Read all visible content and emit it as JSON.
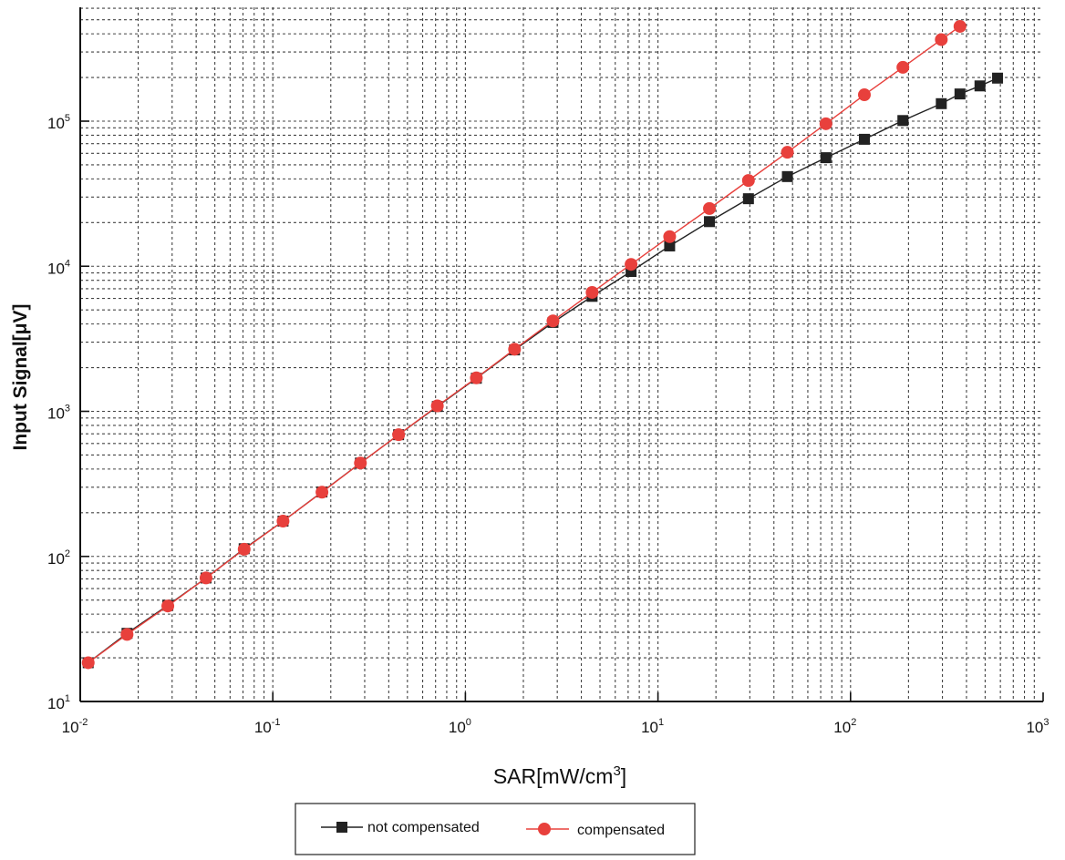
{
  "chart_data": {
    "type": "line",
    "title": "",
    "xlabel": {
      "base": "SAR[mW/cm",
      "sup": "3",
      "tail": "]"
    },
    "ylabel": "Input Signal[μV]",
    "x_scale": "log",
    "y_scale": "log",
    "xlim": [
      0.01,
      1000
    ],
    "ylim": [
      10,
      600000
    ],
    "x_ticks": [
      {
        "base": "10",
        "exp": "-2"
      },
      {
        "base": "10",
        "exp": "-1"
      },
      {
        "base": "10",
        "exp": "0"
      },
      {
        "base": "10",
        "exp": "1"
      },
      {
        "base": "10",
        "exp": "2"
      },
      {
        "base": "10",
        "exp": "3"
      }
    ],
    "y_ticks": [
      {
        "base": "10",
        "exp": "1"
      },
      {
        "base": "10",
        "exp": "2"
      },
      {
        "base": "10",
        "exp": "3"
      },
      {
        "base": "10",
        "exp": "4"
      },
      {
        "base": "10",
        "exp": "5"
      }
    ],
    "grid": true,
    "legend_position": "bottom-center",
    "series": [
      {
        "name": "not compensated",
        "marker": "square",
        "color": "#222222",
        "x": [
          0.011,
          0.0175,
          0.0285,
          0.045,
          0.071,
          0.113,
          0.18,
          0.285,
          0.45,
          0.715,
          1.14,
          1.8,
          2.85,
          4.55,
          7.25,
          11.5,
          18.5,
          29.5,
          47,
          74.5,
          118,
          187,
          296,
          370,
          470,
          580
        ],
        "y": [
          18.5,
          29.5,
          46,
          71,
          113,
          175,
          278,
          440,
          690,
          1080,
          1690,
          2650,
          4100,
          6200,
          9200,
          13800,
          20300,
          29200,
          41500,
          56000,
          75000,
          101000,
          132000,
          154000,
          175000,
          198000
        ]
      },
      {
        "name": "compensated",
        "marker": "circle",
        "color": "#e8403c",
        "x": [
          0.011,
          0.0175,
          0.0285,
          0.045,
          0.071,
          0.113,
          0.18,
          0.285,
          0.45,
          0.715,
          1.14,
          1.8,
          2.85,
          4.55,
          7.25,
          11.5,
          18.5,
          29.5,
          47,
          74.5,
          118,
          187,
          296,
          370
        ],
        "y": [
          18.5,
          29,
          45.5,
          71,
          112,
          175,
          277,
          440,
          690,
          1090,
          1700,
          2680,
          4200,
          6600,
          10300,
          16000,
          25000,
          39000,
          61000,
          96000,
          152000,
          235000,
          365000,
          450000
        ]
      }
    ]
  }
}
